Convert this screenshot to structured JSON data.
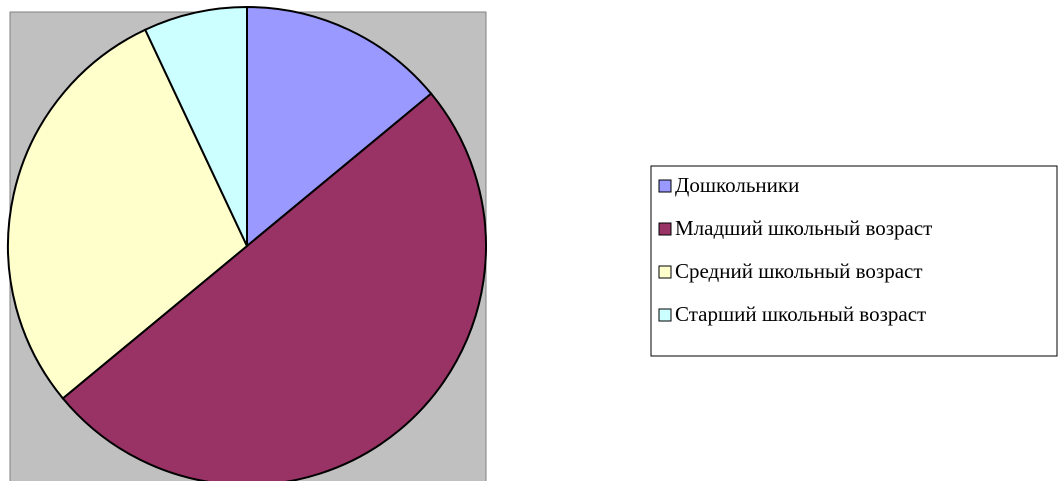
{
  "chart_data": {
    "type": "pie",
    "categories": [
      "Дошкольники",
      "Младший школьный возраст",
      "Средний школьный возраст",
      "Старший школьный возраст"
    ],
    "values": [
      14,
      50,
      29,
      7
    ],
    "colors": [
      "#9999ff",
      "#993366",
      "#ffffcc",
      "#ccffff"
    ],
    "legend": "right"
  }
}
